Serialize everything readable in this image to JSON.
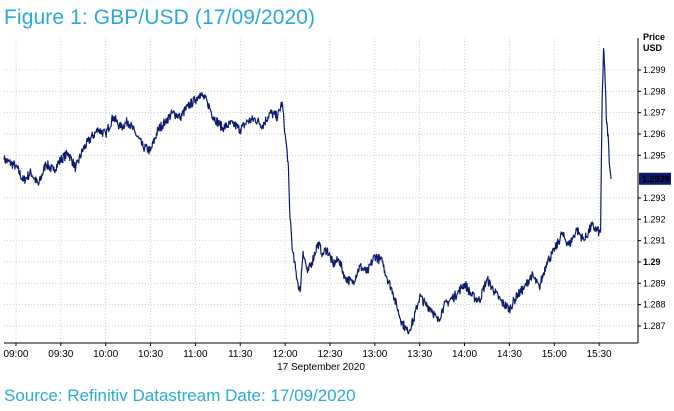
{
  "figure": {
    "title": "Figure 1: GBP/USD (17/09/2020)",
    "source": "Source: Refinitiv Datastream Date: 17/09/2020"
  },
  "colors": {
    "accent": "#2aa9d8",
    "series": "#0d1b6e",
    "grid": "#b0b0b0"
  },
  "chart_data": {
    "type": "line",
    "title": "",
    "xlabel": "17 September 2020",
    "ylabel": "Price USD",
    "y_axis_position": "right",
    "grid": true,
    "ylim": [
      1.2862,
      1.3005
    ],
    "xlim": [
      "08:52",
      "15:56"
    ],
    "x_ticks": [
      "09:00",
      "09:30",
      "10:00",
      "10:30",
      "11:00",
      "11:30",
      "12:00",
      "12:30",
      "13:00",
      "13:30",
      "14:00",
      "14:30",
      "15:00",
      "15:30"
    ],
    "y_ticks": [
      "1.299",
      "1.298",
      "1.297",
      "1.296",
      "1.295",
      "1.2939",
      "1.293",
      "1.292",
      "1.291",
      "1.29",
      "1.289",
      "1.288",
      "1.287"
    ],
    "last_value_label": "1.2939",
    "series": [
      {
        "x": [
          "08:52",
          "09:00",
          "09:05",
          "09:10",
          "09:15",
          "09:20",
          "09:25",
          "09:30",
          "09:35",
          "09:40",
          "09:45",
          "09:50",
          "09:55",
          "10:00",
          "10:05",
          "10:10",
          "10:15",
          "10:20",
          "10:25",
          "10:30",
          "10:35",
          "10:40",
          "10:45",
          "10:50",
          "10:55",
          "11:00",
          "11:03",
          "11:08",
          "11:12",
          "11:18",
          "11:25",
          "11:30",
          "11:35",
          "11:40",
          "11:45",
          "11:50",
          "11:55",
          "11:58",
          "12:00",
          "12:02",
          "12:03",
          "12:05",
          "12:08",
          "12:10",
          "12:12",
          "12:15",
          "12:18",
          "12:22",
          "12:25",
          "12:28",
          "12:32",
          "12:36",
          "12:40",
          "12:45",
          "12:50",
          "12:55",
          "13:00",
          "13:05",
          "13:08",
          "13:12",
          "13:15",
          "13:18",
          "13:22",
          "13:26",
          "13:30",
          "13:34",
          "13:38",
          "13:42",
          "13:46",
          "13:50",
          "13:55",
          "14:00",
          "14:05",
          "14:10",
          "14:15",
          "14:20",
          "14:25",
          "14:30",
          "14:35",
          "14:40",
          "14:45",
          "14:50",
          "14:55",
          "15:00",
          "15:05",
          "15:10",
          "15:15",
          "15:20",
          "15:25",
          "15:30",
          "15:31",
          "15:32",
          "15:33",
          "15:34",
          "15:35",
          "15:36",
          "15:37",
          "15:38"
        ],
        "values": [
          1.2948,
          1.2945,
          1.2938,
          1.2942,
          1.2936,
          1.2946,
          1.2943,
          1.2948,
          1.2951,
          1.2944,
          1.2953,
          1.2958,
          1.2962,
          1.296,
          1.2968,
          1.2963,
          1.2966,
          1.296,
          1.2954,
          1.2952,
          1.2962,
          1.2966,
          1.297,
          1.2968,
          1.2973,
          1.2976,
          1.2979,
          1.2975,
          1.2968,
          1.2963,
          1.2965,
          1.2962,
          1.2966,
          1.2967,
          1.2964,
          1.297,
          1.2968,
          1.2975,
          1.296,
          1.2947,
          1.2925,
          1.2905,
          1.2892,
          1.2886,
          1.2905,
          1.2895,
          1.29,
          1.2909,
          1.2904,
          1.2906,
          1.2899,
          1.2901,
          1.2893,
          1.289,
          1.2898,
          1.2895,
          1.2903,
          1.29,
          1.2893,
          1.2886,
          1.2878,
          1.2872,
          1.2867,
          1.2873,
          1.2884,
          1.288,
          1.2878,
          1.2872,
          1.2879,
          1.2882,
          1.2885,
          1.289,
          1.2884,
          1.2882,
          1.2892,
          1.2886,
          1.2881,
          1.2878,
          1.2884,
          1.2888,
          1.2894,
          1.2888,
          1.29,
          1.2905,
          1.2913,
          1.2908,
          1.2915,
          1.291,
          1.2917,
          1.2914,
          1.2915,
          1.2975,
          1.3,
          1.2985,
          1.2965,
          1.296,
          1.2945,
          1.2939
        ]
      }
    ]
  }
}
